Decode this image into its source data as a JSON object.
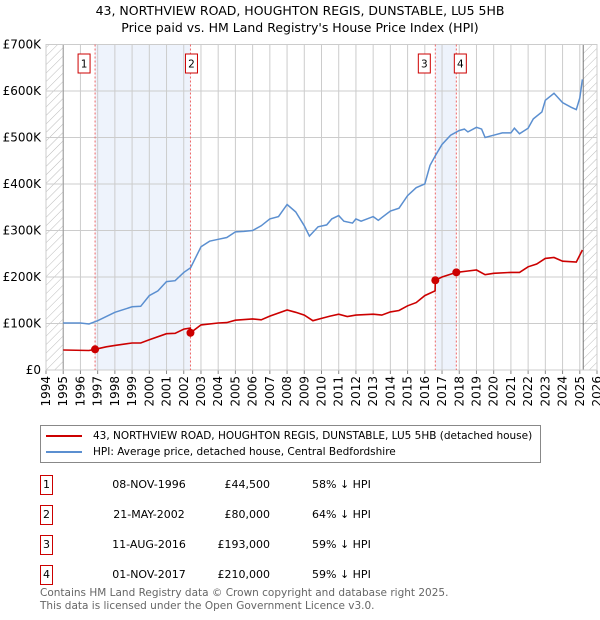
{
  "chart_data": {
    "type": "line",
    "title": "43, NORTHVIEW ROAD, HOUGHTON REGIS, DUNSTABLE, LU5 5HB",
    "subtitle": "Price paid vs. HM Land Registry's House Price Index (HPI)",
    "xlim": [
      1994,
      2026
    ],
    "ylim": [
      0,
      700000
    ],
    "x_ticks": [
      "1994",
      "1995",
      "1996",
      "1997",
      "1998",
      "1999",
      "2000",
      "2001",
      "2002",
      "2003",
      "2004",
      "2005",
      "2006",
      "2007",
      "2008",
      "2009",
      "2010",
      "2011",
      "2012",
      "2013",
      "2014",
      "2015",
      "2016",
      "2017",
      "2018",
      "2019",
      "2020",
      "2021",
      "2022",
      "2023",
      "2024",
      "2025",
      "2026"
    ],
    "y_ticks": [
      {
        "v": 0,
        "label": "£0"
      },
      {
        "v": 100000,
        "label": "£100K"
      },
      {
        "v": 200000,
        "label": "£200K"
      },
      {
        "v": 300000,
        "label": "£300K"
      },
      {
        "v": 400000,
        "label": "£400K"
      },
      {
        "v": 500000,
        "label": "£500K"
      },
      {
        "v": 600000,
        "label": "£600K"
      },
      {
        "v": 700000,
        "label": "£700K"
      }
    ],
    "grid": true,
    "data_range": [
      1995,
      2025.2
    ],
    "shaded_periods": [
      [
        1996.85,
        2002.39
      ],
      [
        2016.61,
        2017.83
      ]
    ],
    "series": [
      {
        "name": "43, NORTHVIEW ROAD, HOUGHTON REGIS, DUNSTABLE, LU5 5HB (detached house)",
        "color": "#cc0000",
        "x": [
          1995,
          1996.5,
          1996.85,
          1997.5,
          1998,
          1999,
          1999.5,
          2000,
          2001,
          2001.5,
          2002,
          2002.38,
          2002.39,
          2003,
          2004,
          2004.5,
          2005,
          2006,
          2006.5,
          2007,
          2008,
          2008.5,
          2009,
          2009.5,
          2010,
          2010.5,
          2011,
          2011.5,
          2012,
          2013,
          2013.5,
          2014,
          2014.5,
          2015,
          2015.5,
          2016,
          2016.6,
          2016.61,
          2017,
          2017.83,
          2018.5,
          2019,
          2019.5,
          2020,
          2021,
          2021.5,
          2022,
          2022.5,
          2023,
          2023.5,
          2024,
          2024.8,
          2025.15
        ],
        "y": [
          43000,
          42000,
          44500,
          50000,
          53000,
          58000,
          58000,
          65000,
          78000,
          79000,
          88000,
          90000,
          80000,
          97000,
          101000,
          102000,
          107000,
          110000,
          108000,
          116000,
          129000,
          124000,
          118000,
          106000,
          111000,
          116000,
          120000,
          115000,
          118000,
          120000,
          118000,
          125000,
          128000,
          138000,
          145000,
          160000,
          170000,
          193000,
          200000,
          210000,
          213000,
          215000,
          205000,
          208000,
          210000,
          210000,
          222000,
          228000,
          240000,
          242000,
          234000,
          232000,
          258000
        ]
      },
      {
        "name": "HPI: Average price, detached house, Central Bedfordshire",
        "color": "#5b8fd0",
        "x": [
          1995,
          1996,
          1996.5,
          1997,
          1998,
          1999,
          1999.5,
          2000,
          2000.5,
          2001,
          2001.5,
          2002,
          2002.4,
          2003,
          2003.5,
          2004,
          2004.5,
          2005,
          2005.5,
          2006,
          2006.5,
          2007,
          2007.5,
          2008,
          2008.5,
          2009,
          2009.3,
          2009.8,
          2010.3,
          2010.6,
          2011,
          2011.3,
          2011.8,
          2012,
          2012.3,
          2013,
          2013.3,
          2014,
          2014.5,
          2015,
          2015.5,
          2016,
          2016.3,
          2016.6,
          2017,
          2017.5,
          2018,
          2018.3,
          2018.5,
          2019,
          2019.3,
          2019.5,
          2020,
          2020.5,
          2021,
          2021.2,
          2021.5,
          2022,
          2022.3,
          2022.8,
          2023,
          2023.5,
          2024,
          2024.5,
          2024.8,
          2025,
          2025.15
        ],
        "y": [
          101000,
          101000,
          99000,
          106000,
          124000,
          136000,
          137000,
          160000,
          170000,
          190000,
          192000,
          210000,
          220000,
          265000,
          277000,
          281000,
          285000,
          297000,
          298000,
          300000,
          310000,
          325000,
          330000,
          356000,
          340000,
          310000,
          288000,
          308000,
          312000,
          325000,
          332000,
          320000,
          316000,
          325000,
          320000,
          330000,
          322000,
          342000,
          348000,
          375000,
          392000,
          400000,
          440000,
          460000,
          485000,
          505000,
          515000,
          518000,
          512000,
          522000,
          518000,
          500000,
          505000,
          510000,
          510000,
          520000,
          508000,
          520000,
          540000,
          555000,
          580000,
          595000,
          575000,
          565000,
          560000,
          585000,
          625000
        ]
      }
    ],
    "sales": [
      {
        "label": "1",
        "x": 1996.85,
        "y": 44500
      },
      {
        "label": "2",
        "x": 2002.39,
        "y": 80000
      },
      {
        "label": "3",
        "x": 2016.61,
        "y": 193000
      },
      {
        "label": "4",
        "x": 2017.83,
        "y": 210000
      }
    ],
    "legend_position": "below"
  },
  "transactions": [
    {
      "num": "1",
      "date": "08-NOV-1996",
      "price": "£44,500",
      "hpi": "58% ↓ HPI"
    },
    {
      "num": "2",
      "date": "21-MAY-2002",
      "price": "£80,000",
      "hpi": "64% ↓ HPI"
    },
    {
      "num": "3",
      "date": "11-AUG-2016",
      "price": "£193,000",
      "hpi": "59% ↓ HPI"
    },
    {
      "num": "4",
      "date": "01-NOV-2017",
      "price": "£210,000",
      "hpi": "59% ↓ HPI"
    }
  ],
  "footer": {
    "line1": "Contains HM Land Registry data © Crown copyright and database right 2025.",
    "line2": "This data is licensed under the Open Government Licence v3.0."
  }
}
